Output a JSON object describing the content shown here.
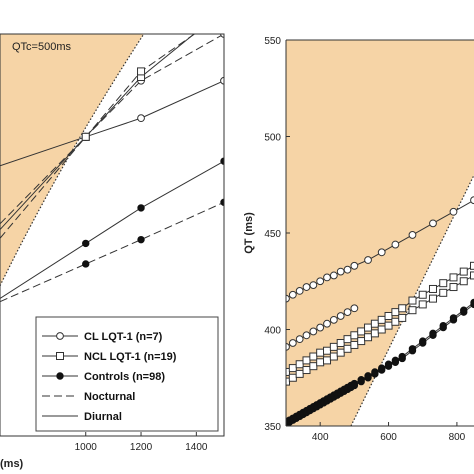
{
  "chart_data": [
    {
      "type": "line",
      "panel": "left",
      "annotation": "QTc=500ms",
      "xlabel": "(ms)",
      "x_ticks": [
        "1000",
        "1200",
        "1400"
      ],
      "xlim": [
        690,
        1500
      ],
      "ylim": [
        335,
        550
      ],
      "legend": {
        "placement": "bottom-right",
        "entries": [
          {
            "label": "CL LQT-1 (n=7)",
            "marker": "open-circle"
          },
          {
            "label": "NCL LQT-1 (n=19)",
            "marker": "open-square"
          },
          {
            "label": "Controls  (n=98)",
            "marker": "filled-circle"
          },
          {
            "label": "Nocturnal",
            "style": "dashed"
          },
          {
            "label": "Diurnal",
            "style": "solid"
          }
        ]
      },
      "series": [
        {
          "marker": "open-circle",
          "style": "solid",
          "x": [
            1000,
            1200,
            1500
          ],
          "y": [
            495,
            505,
            525
          ]
        },
        {
          "marker": "open-circle",
          "style": "dashed",
          "x": [
            1000,
            1200,
            1500
          ],
          "y": [
            495,
            525,
            550
          ]
        },
        {
          "marker": "open-square",
          "style": "solid",
          "x": [
            1000,
            1200,
            1500
          ],
          "y": [
            495,
            527,
            563
          ]
        },
        {
          "marker": "open-square",
          "style": "dashed",
          "x": [
            1000,
            1200,
            1500
          ],
          "y": [
            495,
            530,
            561
          ]
        },
        {
          "marker": "filled-circle",
          "style": "solid",
          "x": [
            1000,
            1200,
            1500
          ],
          "y": [
            438,
            457,
            482
          ]
        },
        {
          "marker": "filled-circle",
          "style": "dashed",
          "x": [
            1000,
            1200,
            1500
          ],
          "y": [
            427,
            440,
            460
          ]
        }
      ]
    },
    {
      "type": "line",
      "panel": "right",
      "ylabel": "QT (ms)",
      "x_ticks": [
        "400",
        "600",
        "800"
      ],
      "y_ticks": [
        "350",
        "400",
        "450",
        "500",
        "550"
      ],
      "xlim": [
        300,
        850
      ],
      "ylim": [
        350,
        550
      ],
      "series": [
        {
          "marker": "open-circle",
          "x": [
            300,
            320,
            340,
            360,
            380,
            400,
            420,
            440,
            460,
            480,
            500,
            540,
            580,
            620,
            670,
            730,
            790,
            850
          ],
          "y": [
            416,
            418,
            420,
            422,
            423,
            425,
            427,
            428,
            430,
            431,
            433,
            436,
            440,
            444,
            449,
            455,
            461,
            467
          ]
        },
        {
          "marker": "open-circle",
          "x": [
            300,
            320,
            340,
            360,
            380,
            400,
            420,
            440,
            460,
            480,
            500
          ],
          "y": [
            391,
            393,
            395,
            397,
            399,
            401,
            403,
            405,
            407,
            409,
            411
          ]
        },
        {
          "marker": "open-square",
          "x": [
            300,
            320,
            340,
            360,
            380,
            400,
            420,
            440,
            460,
            480,
            500,
            520,
            540,
            560,
            580,
            600,
            620,
            640,
            670,
            700,
            730,
            760,
            790,
            820,
            850
          ],
          "y": [
            378,
            380,
            382,
            384,
            386,
            388,
            389,
            391,
            393,
            395,
            397,
            399,
            401,
            403,
            405,
            407,
            409,
            411,
            415,
            418,
            421,
            424,
            427,
            430,
            433
          ]
        },
        {
          "marker": "open-square",
          "x": [
            300,
            320,
            340,
            360,
            380,
            400,
            420,
            440,
            460,
            480,
            500,
            520,
            540,
            560,
            580,
            600,
            620,
            640,
            670,
            700,
            730,
            760,
            790,
            820,
            850
          ],
          "y": [
            373,
            375,
            377,
            379,
            381,
            383,
            384,
            386,
            388,
            390,
            392,
            394,
            396,
            398,
            400,
            402,
            404,
            406,
            410,
            413,
            416,
            419,
            422,
            425,
            428
          ]
        },
        {
          "marker": "filled-circle",
          "x": [
            300,
            310,
            320,
            330,
            340,
            350,
            360,
            370,
            380,
            390,
            400,
            410,
            420,
            430,
            440,
            450,
            460,
            470,
            480,
            490,
            500,
            520,
            540,
            560,
            580,
            600,
            620,
            640,
            670,
            700,
            730,
            760,
            790,
            820,
            850
          ],
          "y": [
            352,
            353,
            354,
            355,
            356,
            357,
            358,
            359,
            360,
            361,
            362,
            363,
            364,
            365,
            366,
            367,
            368,
            369,
            370,
            371,
            372,
            374,
            376,
            378,
            380,
            382,
            384,
            386,
            390,
            394,
            398,
            402,
            406,
            410,
            414
          ]
        },
        {
          "marker": "filled-circle",
          "x": [
            300,
            310,
            320,
            330,
            340,
            350,
            360,
            370,
            380,
            390,
            400,
            410,
            420,
            430,
            440,
            450,
            460,
            470,
            480,
            490,
            500,
            520,
            540,
            560,
            580,
            600,
            620,
            640,
            670,
            700,
            730,
            760,
            790,
            820,
            850
          ],
          "y": [
            351,
            352,
            353,
            354,
            355,
            356,
            357,
            358,
            359,
            360,
            361,
            362,
            363,
            364,
            365,
            366,
            367,
            368,
            369,
            370,
            371,
            373,
            375,
            377,
            379,
            381,
            383,
            385,
            389,
            393,
            397,
            401,
            405,
            409,
            413
          ]
        }
      ]
    }
  ]
}
